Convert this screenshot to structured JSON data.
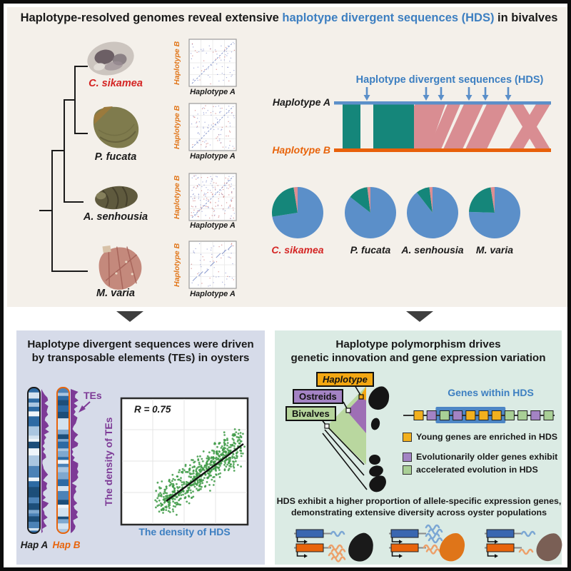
{
  "title": {
    "prefix": "Haplotype-resolved genomes reveal extensive ",
    "highlight": "haplotype divergent sequences (HDS)",
    "suffix": " in bivalves"
  },
  "top_panel": {
    "species": [
      {
        "name": "C. sikamea",
        "color": "#d42423"
      },
      {
        "name": "P. fucata",
        "color": "#1a1a1a"
      },
      {
        "name": "A. senhousia",
        "color": "#1a1a1a"
      },
      {
        "name": "M. varia",
        "color": "#1a1a1a"
      }
    ],
    "dotplot_axes": {
      "x": "Haplotype A",
      "y": "Haplotype B"
    },
    "hds_diagram": {
      "heading": "Haplotype divergent sequences (HDS)",
      "hap_a_label": "Haplotype A",
      "hap_b_label": "Haplotype B"
    }
  },
  "left_panel": {
    "title_line1": "Haplotype divergent sequences were driven",
    "title_line2": "by transposable elements (TEs) in oysters",
    "tes_label": "TEs",
    "hap_a_label": "Hap A",
    "hap_b_label": "Hap B",
    "scatter_annotation": "R = 0.75",
    "scatter_xlabel": "The density of HDS",
    "scatter_ylabel": "The density of TEs"
  },
  "right_panel": {
    "title_line1": "Haplotype polymorphism drives",
    "title_line2": "genetic innovation and gene expression variation",
    "clade_labels": {
      "haplotype": "Haplotype",
      "ostreids": "Ostreids",
      "bivalves": "Bivalves"
    },
    "genes_heading": "Genes within HDS",
    "gene_track": {
      "gene_colors": [
        "yellow",
        "purple",
        "green",
        "purple",
        "yellow",
        "yellow",
        "yellow",
        "green",
        "green",
        "purple",
        "green"
      ],
      "hds_window": {
        "start_index": 2,
        "end_index": 6
      }
    },
    "legend": [
      {
        "color": "yellow",
        "text": "Young genes are enriched in HDS"
      },
      {
        "color": "purple",
        "text": "Evolutionarily older genes exhibit"
      },
      {
        "color": "green",
        "text": "accelerated evolution in HDS"
      }
    ],
    "caption_line1": "HDS exhibit a higher proportion of allele-specific expression genes,",
    "caption_line2": "demonstrating extensive diversity across oyster populations",
    "expression_groups": [
      {
        "blue_transcripts": 1,
        "orange_transcripts": 4,
        "oyster_color": "#1a1a1a"
      },
      {
        "blue_transcripts": 4,
        "orange_transcripts": 2,
        "oyster_color": "#df7519"
      },
      {
        "blue_transcripts": 1,
        "orange_transcripts": 1,
        "oyster_color": "#7a5f55"
      }
    ]
  },
  "colors": {
    "accent_blue": "#3d7fc1",
    "steel_blue": "#5b8fc9",
    "orange": "#e8640c",
    "teal": "#15867a",
    "pink": "#dd8e92",
    "purple": "#7d3a96",
    "scatter_green": "#3f9b48",
    "gene_yellow": "#f2b01e",
    "gene_purple": "#a383c4",
    "gene_green": "#a9cf96",
    "hds_highlight": "#4d86c5",
    "gene_blue_box": "#3a67b0",
    "gene_orange_box": "#e8640c",
    "top_bg": "#f4f0ea",
    "panel_left_bg": "#d6dbe9",
    "panel_right_bg": "#dbebe4"
  },
  "chart_data": [
    {
      "type": "pie",
      "title": "C. sikamea",
      "values": [
        72.5,
        25.0,
        2.5
      ],
      "colors": [
        "#5b8fc9",
        "#15867a",
        "#dd8e92"
      ]
    },
    {
      "type": "pie",
      "title": "P. fucata",
      "values": [
        85.5,
        12.5,
        2.0
      ],
      "colors": [
        "#5b8fc9",
        "#15867a",
        "#dd8e92"
      ]
    },
    {
      "type": "pie",
      "title": "A. senhousia",
      "values": [
        89.5,
        8.5,
        2.0
      ],
      "colors": [
        "#5b8fc9",
        "#15867a",
        "#dd8e92"
      ]
    },
    {
      "type": "pie",
      "title": "M. varia",
      "values": [
        75.5,
        22.0,
        2.5
      ],
      "colors": [
        "#5b8fc9",
        "#15867a",
        "#dd8e92"
      ]
    },
    {
      "type": "scatter",
      "xlabel": "The density of HDS",
      "ylabel": "The density of TEs",
      "annotation": "R = 0.75",
      "r_value": 0.75,
      "trend": "positive correlation"
    }
  ]
}
